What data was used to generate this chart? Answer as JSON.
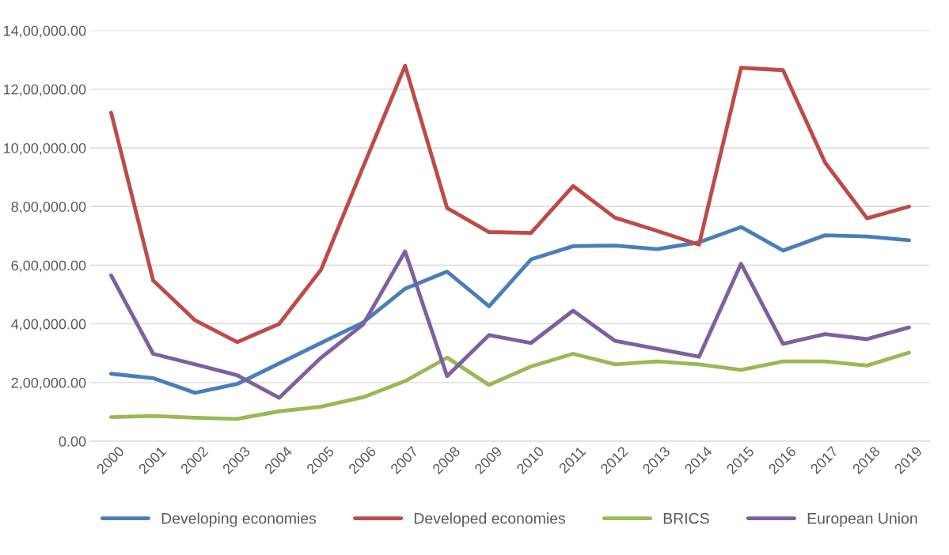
{
  "chart_data": {
    "type": "line",
    "categories": [
      "2000",
      "2001",
      "2002",
      "2003",
      "2004",
      "2005",
      "2006",
      "2007",
      "2008",
      "2009",
      "2010",
      "2011",
      "2012",
      "2013",
      "2014",
      "2015",
      "2016",
      "2017",
      "2018",
      "2019"
    ],
    "series": [
      {
        "name": "Developing economies",
        "color": "#4a7ebb",
        "values": [
          230000,
          215000,
          165000,
          195000,
          265000,
          335000,
          405000,
          520000,
          578000,
          460000,
          620000,
          665000,
          667000,
          655000,
          678000,
          730000,
          650000,
          702000,
          698000,
          685000
        ]
      },
      {
        "name": "Developed economies",
        "color": "#be4b48",
        "values": [
          1120000,
          548000,
          412000,
          338000,
          400000,
          585000,
          935000,
          1280000,
          795000,
          713000,
          710000,
          870000,
          762000,
          717000,
          670000,
          1273000,
          1265000,
          950000,
          760000,
          800000
        ]
      },
      {
        "name": "BRICS",
        "color": "#98b954",
        "values": [
          82000,
          86000,
          80000,
          76000,
          102000,
          118000,
          150000,
          205000,
          285000,
          192000,
          255000,
          298000,
          262000,
          272000,
          262000,
          243000,
          272000,
          272000,
          258000,
          302000
        ]
      },
      {
        "name": "European Union",
        "color": "#7d60a0",
        "values": [
          565000,
          298000,
          262000,
          225000,
          148000,
          285000,
          398000,
          647000,
          222000,
          362000,
          335000,
          445000,
          342000,
          315000,
          288000,
          605000,
          332000,
          365000,
          348000,
          388000
        ]
      }
    ],
    "ylim": [
      0,
      1400000
    ],
    "yticks": [
      {
        "value": 0,
        "label": "0.00"
      },
      {
        "value": 200000,
        "label": "2,00,000.00"
      },
      {
        "value": 400000,
        "label": "4,00,000.00"
      },
      {
        "value": 600000,
        "label": "6,00,000.00"
      },
      {
        "value": 800000,
        "label": "8,00,000.00"
      },
      {
        "value": 1000000,
        "label": "10,00,000.00"
      },
      {
        "value": 1200000,
        "label": "12,00,000.00"
      },
      {
        "value": 1400000,
        "label": "14,00,000.00"
      }
    ],
    "grid": "y",
    "legend": "bottom",
    "marker": "none",
    "line_style": "solid"
  }
}
